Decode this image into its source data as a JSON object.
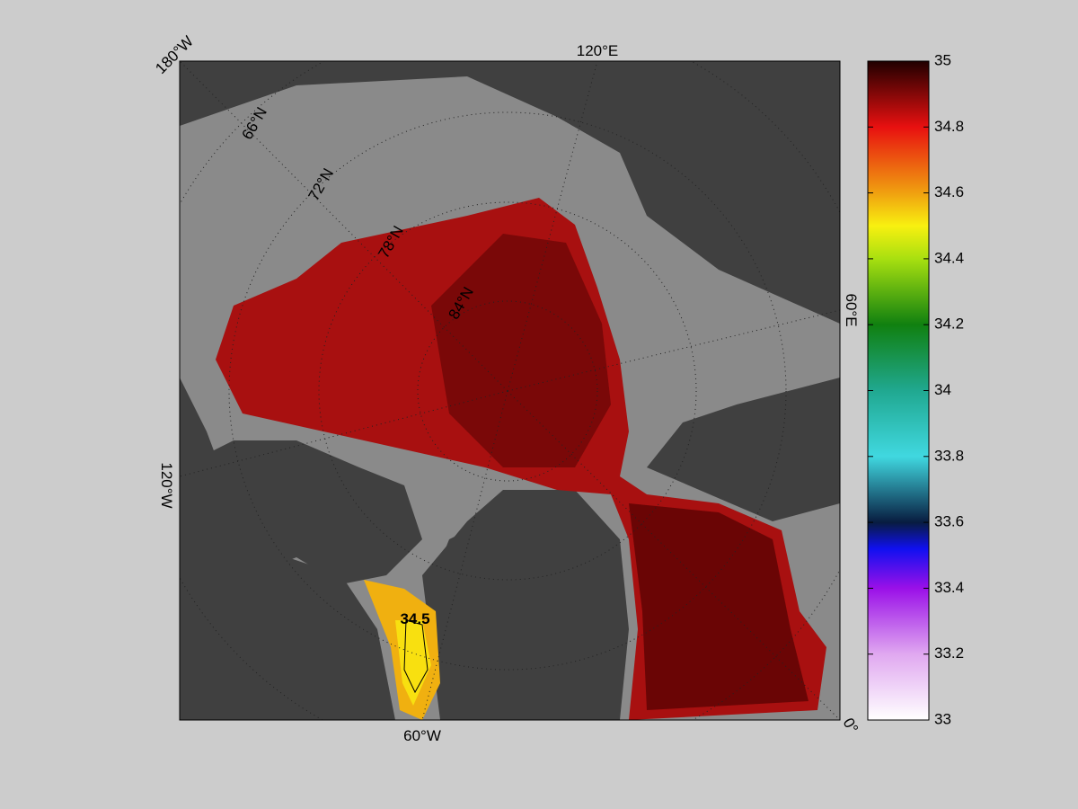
{
  "map": {
    "longitude_labels": [
      "180°W",
      "120°E",
      "60°E",
      "0°",
      "60°W",
      "120°W"
    ],
    "latitude_labels": [
      "66°N",
      "72°N",
      "78°N",
      "84°N"
    ],
    "contour_label": 34.5
  },
  "colorbar": {
    "lim": [
      33,
      35
    ],
    "ticks": [
      33,
      33.2,
      33.4,
      33.6,
      33.8,
      34,
      34.2,
      34.4,
      34.6,
      34.8,
      35
    ]
  }
}
